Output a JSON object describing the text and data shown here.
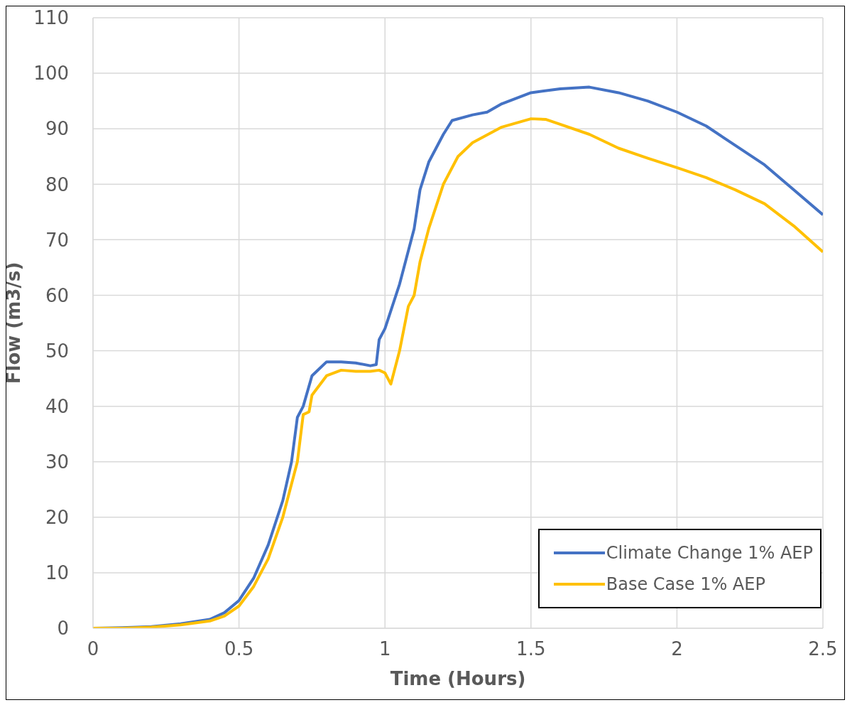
{
  "chart_data": {
    "type": "line",
    "xlabel": "Time (Hours)",
    "ylabel": "Flow (m3/s)",
    "xlim": [
      0,
      2.5
    ],
    "xticks": [
      0,
      0.5,
      1,
      1.5,
      2,
      2.5
    ],
    "ylim": [
      0,
      110
    ],
    "yticks": [
      0,
      10,
      20,
      30,
      40,
      50,
      60,
      70,
      80,
      90,
      100,
      110
    ],
    "grid": true,
    "legend": "bottom right",
    "marker": "none",
    "line_style": "solid",
    "series": [
      {
        "name": "Climate Change 1% AEP",
        "color": "#4472c4",
        "x": [
          0,
          0.1,
          0.2,
          0.3,
          0.4,
          0.45,
          0.5,
          0.55,
          0.6,
          0.65,
          0.68,
          0.7,
          0.72,
          0.75,
          0.8,
          0.85,
          0.9,
          0.95,
          0.97,
          0.98,
          1.0,
          1.05,
          1.1,
          1.12,
          1.15,
          1.2,
          1.23,
          1.3,
          1.35,
          1.4,
          1.5,
          1.6,
          1.7,
          1.8,
          1.9,
          2.0,
          2.1,
          2.2,
          2.3,
          2.4,
          2.5
        ],
        "values": [
          0,
          0.1,
          0.3,
          0.8,
          1.6,
          2.8,
          5,
          9,
          15,
          23,
          30,
          38,
          40,
          45.5,
          48,
          48,
          47.8,
          47.3,
          47.5,
          52,
          54,
          62,
          72,
          79,
          84,
          89,
          91.5,
          92.5,
          93,
          94.5,
          96.5,
          97.2,
          97.5,
          96.5,
          95,
          93,
          90.5,
          87,
          83.5,
          79,
          74.5
        ]
      },
      {
        "name": "Base Case 1% AEP",
        "color": "#ffc000",
        "x": [
          0,
          0.1,
          0.2,
          0.3,
          0.4,
          0.45,
          0.5,
          0.55,
          0.6,
          0.65,
          0.7,
          0.72,
          0.74,
          0.75,
          0.8,
          0.85,
          0.9,
          0.95,
          0.98,
          1.0,
          1.02,
          1.05,
          1.08,
          1.1,
          1.12,
          1.15,
          1.2,
          1.25,
          1.3,
          1.4,
          1.5,
          1.55,
          1.6,
          1.7,
          1.8,
          1.9,
          2.0,
          2.1,
          2.2,
          2.3,
          2.4,
          2.5
        ],
        "values": [
          0,
          0,
          0.2,
          0.6,
          1.3,
          2.2,
          4,
          7.5,
          12.5,
          20,
          30,
          38.5,
          39,
          42,
          45.5,
          46.5,
          46.3,
          46.3,
          46.5,
          46,
          44,
          50,
          58,
          60,
          66,
          72,
          80,
          85,
          87.5,
          90.3,
          91.8,
          91.7,
          90.8,
          89,
          86.5,
          84.7,
          83,
          81.2,
          79,
          76.5,
          72.5,
          67.8
        ]
      }
    ]
  }
}
